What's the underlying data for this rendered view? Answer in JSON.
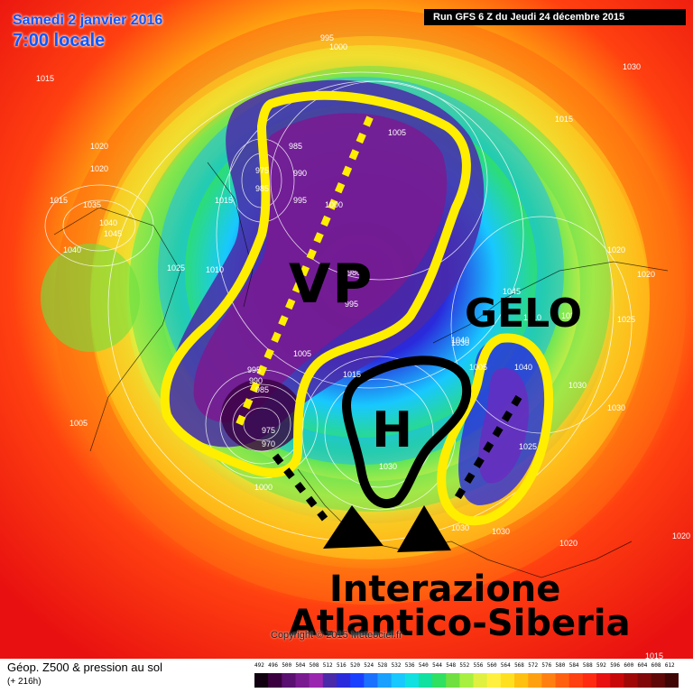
{
  "header": {
    "date": "Samedi 2 janvier 2016",
    "time": "7:00 locale",
    "run": "Run GFS 6 Z du Jeudi 24 décembre 2015"
  },
  "annotations": {
    "vp": "VP",
    "gelo": "GELO",
    "high": "H",
    "caption_line1": "Interazione",
    "caption_line2": "Atlantico-Siberia"
  },
  "copyright": "Copyright © 2015 Meteociel.fr",
  "footer": {
    "title": "Géop. Z500 & pression au sol",
    "subtitle": "(+ 216h)"
  },
  "scale": {
    "labels": [
      "492",
      "496",
      "500",
      "504",
      "508",
      "512",
      "516",
      "520",
      "524",
      "528",
      "532",
      "536",
      "540",
      "544",
      "548",
      "552",
      "556",
      "560",
      "564",
      "568",
      "572",
      "576",
      "580",
      "584",
      "588",
      "592",
      "596",
      "600",
      "604",
      "608",
      "612"
    ],
    "colors": [
      "#100010",
      "#3a0040",
      "#5a1070",
      "#7a1a90",
      "#9a26b0",
      "#4a2aa8",
      "#2a2adc",
      "#1a40ff",
      "#1a70ff",
      "#1aa0ff",
      "#18c8ff",
      "#10e0e0",
      "#10e0a0",
      "#30e060",
      "#70e040",
      "#a8f040",
      "#e0f040",
      "#fff040",
      "#ffe020",
      "#ffc010",
      "#ffa010",
      "#ff8010",
      "#ff6010",
      "#ff4010",
      "#ff2a10",
      "#e81010",
      "#c80808",
      "#a00808",
      "#800808",
      "#600808",
      "#400606"
    ]
  },
  "map_labels": {
    "pressures": [
      "995",
      "1000",
      "1015",
      "1005",
      "985",
      "990",
      "995",
      "1000",
      "1020",
      "1015",
      "975",
      "985",
      "1035",
      "1040",
      "1045",
      "1040",
      "1025",
      "1010",
      "1015",
      "980",
      "995",
      "1005",
      "1040",
      "1045",
      "1030",
      "1035",
      "995",
      "990",
      "985",
      "975",
      "970",
      "1000",
      "1015",
      "1005",
      "1030",
      "1040",
      "1030",
      "1025",
      "1030",
      "1030",
      "1020",
      "1010",
      "1025",
      "1020",
      "1005",
      "1015",
      "1015",
      "1020",
      "1020",
      "1030",
      "1030",
      "1020"
    ]
  }
}
